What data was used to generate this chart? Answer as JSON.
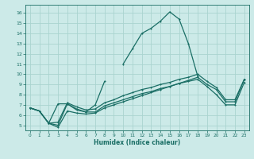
{
  "xlabel": "Humidex (Indice chaleur)",
  "bg_color": "#cceae8",
  "grid_color": "#aad4d0",
  "line_color": "#1a6e65",
  "xlim": [
    -0.5,
    23.5
  ],
  "ylim": [
    4.5,
    16.8
  ],
  "xticks": [
    0,
    1,
    2,
    3,
    4,
    5,
    6,
    7,
    8,
    9,
    10,
    11,
    12,
    13,
    14,
    15,
    16,
    17,
    18,
    19,
    20,
    21,
    22,
    23
  ],
  "yticks": [
    5,
    6,
    7,
    8,
    9,
    10,
    11,
    12,
    13,
    14,
    15,
    16
  ],
  "series": [
    {
      "x": [
        0,
        1,
        2,
        3,
        4,
        5,
        6,
        7,
        8,
        9,
        10,
        11,
        12,
        13,
        14,
        15,
        16,
        17,
        18,
        19,
        20,
        21,
        22,
        23
      ],
      "y": [
        6.7,
        6.4,
        5.2,
        7.1,
        7.1,
        6.5,
        6.3,
        7.0,
        9.3,
        null,
        11.0,
        12.5,
        14.0,
        14.5,
        15.2,
        16.1,
        15.4,
        13.0,
        9.8,
        null,
        null,
        null,
        null,
        null
      ]
    },
    {
      "x": [
        0,
        1,
        2,
        3,
        4,
        5,
        6,
        7,
        8,
        9,
        10,
        11,
        12,
        13,
        14,
        15,
        16,
        17,
        18,
        19,
        20,
        21,
        22,
        23
      ],
      "y": [
        6.7,
        6.4,
        5.2,
        4.8,
        6.4,
        6.2,
        6.1,
        6.2,
        6.7,
        7.0,
        7.3,
        7.6,
        7.9,
        8.2,
        8.5,
        8.8,
        9.1,
        9.4,
        9.7,
        9.0,
        8.5,
        7.3,
        7.3,
        9.5
      ]
    },
    {
      "x": [
        0,
        1,
        2,
        3,
        4,
        5,
        6,
        7,
        8,
        9,
        10,
        11,
        12,
        13,
        14,
        15,
        16,
        17,
        18,
        19,
        20,
        21,
        22,
        23
      ],
      "y": [
        6.7,
        6.4,
        5.2,
        5.0,
        7.1,
        6.6,
        6.3,
        6.3,
        6.9,
        7.2,
        7.5,
        7.8,
        8.1,
        8.3,
        8.6,
        8.8,
        9.1,
        9.3,
        9.5,
        8.8,
        8.0,
        7.0,
        7.0,
        9.2
      ]
    },
    {
      "x": [
        0,
        1,
        2,
        3,
        4,
        5,
        6,
        7,
        8,
        9,
        10,
        11,
        12,
        13,
        14,
        15,
        16,
        17,
        18,
        19,
        20,
        21,
        22,
        23
      ],
      "y": [
        6.7,
        6.4,
        5.2,
        5.3,
        7.2,
        6.8,
        6.5,
        6.6,
        7.2,
        7.5,
        7.9,
        8.2,
        8.5,
        8.7,
        9.0,
        9.2,
        9.5,
        9.7,
        10.0,
        9.3,
        8.7,
        7.5,
        7.5,
        9.5
      ]
    }
  ]
}
